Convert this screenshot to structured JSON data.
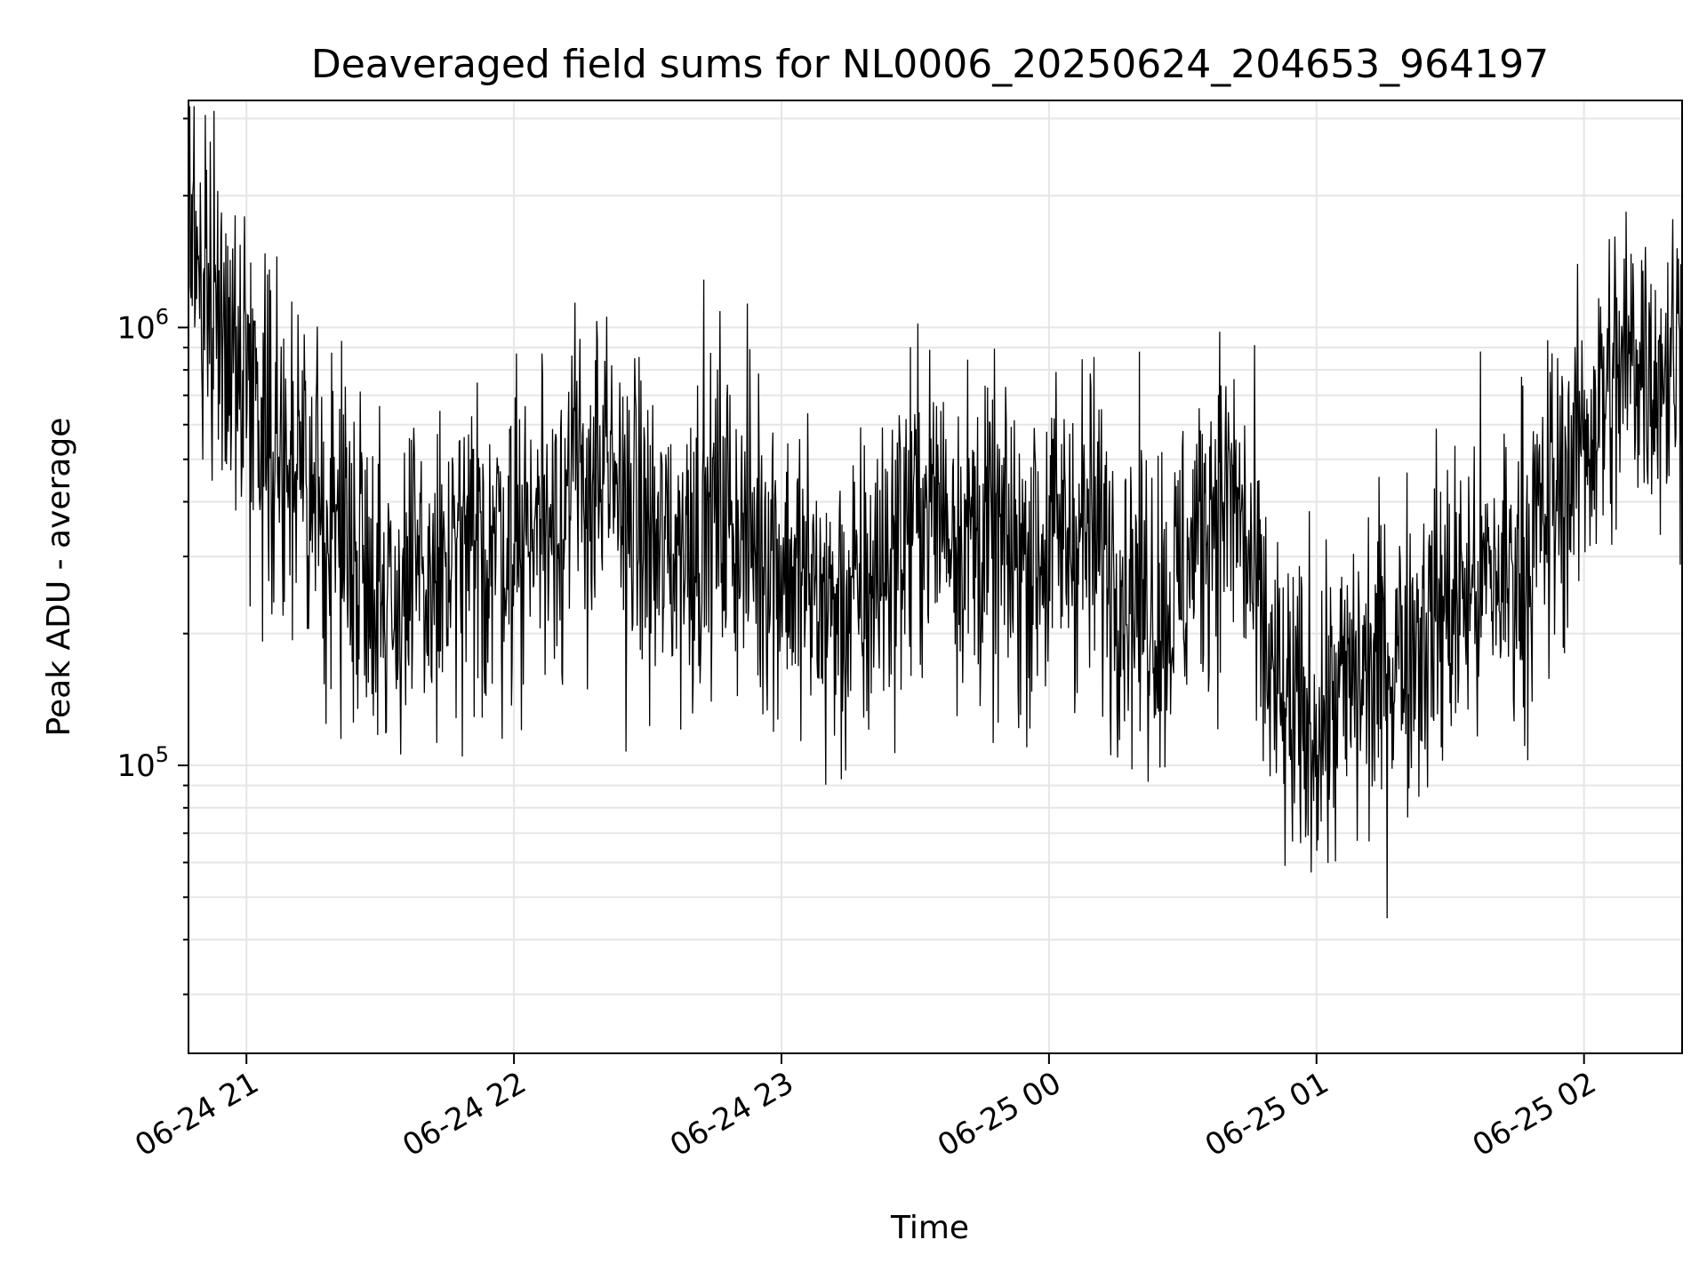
{
  "chart_data": {
    "type": "line",
    "title": "Deaveraged field sums for NL0006_20250624_204653_964197",
    "xlabel": "Time",
    "ylabel": "Peak ADU - average",
    "yscale": "log",
    "grid": true,
    "line_color": "#000000",
    "grid_color": "#e6e6e6",
    "xlim": [
      "2025-06-24 20:47",
      "2025-06-25 02:22"
    ],
    "ylim": [
      22000,
      3300000
    ],
    "xticks": [
      {
        "t": "2025-06-24 21:00",
        "label": "06-24 21"
      },
      {
        "t": "2025-06-24 22:00",
        "label": "06-24 22"
      },
      {
        "t": "2025-06-24 23:00",
        "label": "06-24 23"
      },
      {
        "t": "2025-06-25 00:00",
        "label": "06-25 00"
      },
      {
        "t": "2025-06-25 01:00",
        "label": "06-25 01"
      },
      {
        "t": "2025-06-25 02:00",
        "label": "06-25 02"
      }
    ],
    "yticks": [
      {
        "value": 100000,
        "base": "10",
        "exp": "5"
      },
      {
        "value": 1000000,
        "base": "10",
        "exp": "6"
      }
    ],
    "series": [
      {
        "points": [
          [
            "2025-06-24 20:47",
            1500000
          ],
          [
            "2025-06-24 20:52",
            1300000
          ],
          [
            "2025-06-24 20:57",
            900000
          ],
          [
            "2025-06-24 21:02",
            700000
          ],
          [
            "2025-06-24 21:07",
            550000
          ],
          [
            "2025-06-24 21:12",
            420000
          ],
          [
            "2025-06-24 21:17",
            380000
          ],
          [
            "2025-06-24 21:22",
            340000
          ],
          [
            "2025-06-24 21:27",
            300000
          ],
          [
            "2025-06-24 21:32",
            240000
          ],
          [
            "2025-06-24 21:37",
            250000
          ],
          [
            "2025-06-24 21:42",
            260000
          ],
          [
            "2025-06-24 21:47",
            280000
          ],
          [
            "2025-06-24 21:52",
            300000
          ],
          [
            "2025-06-24 21:57",
            330000
          ],
          [
            "2025-06-24 22:02",
            340000
          ],
          [
            "2025-06-24 22:07",
            380000
          ],
          [
            "2025-06-24 22:12",
            420000
          ],
          [
            "2025-06-24 22:17",
            450000
          ],
          [
            "2025-06-24 22:22",
            420000
          ],
          [
            "2025-06-24 22:27",
            380000
          ],
          [
            "2025-06-24 22:32",
            300000
          ],
          [
            "2025-06-24 22:37",
            320000
          ],
          [
            "2025-06-24 22:42",
            360000
          ],
          [
            "2025-06-24 22:47",
            380000
          ],
          [
            "2025-06-24 22:52",
            340000
          ],
          [
            "2025-06-24 22:57",
            320000
          ],
          [
            "2025-06-24 23:02",
            280000
          ],
          [
            "2025-06-24 23:07",
            250000
          ],
          [
            "2025-06-24 23:12",
            220000
          ],
          [
            "2025-06-24 23:17",
            230000
          ],
          [
            "2025-06-24 23:22",
            280000
          ],
          [
            "2025-06-24 23:27",
            340000
          ],
          [
            "2025-06-24 23:32",
            400000
          ],
          [
            "2025-06-24 23:37",
            380000
          ],
          [
            "2025-06-24 23:42",
            340000
          ],
          [
            "2025-06-24 23:47",
            320000
          ],
          [
            "2025-06-24 23:52",
            300000
          ],
          [
            "2025-06-24 23:57",
            310000
          ],
          [
            "2025-06-25 00:02",
            330000
          ],
          [
            "2025-06-25 00:07",
            350000
          ],
          [
            "2025-06-25 00:12",
            320000
          ],
          [
            "2025-06-25 00:17",
            270000
          ],
          [
            "2025-06-25 00:22",
            240000
          ],
          [
            "2025-06-25 00:27",
            230000
          ],
          [
            "2025-06-25 00:32",
            300000
          ],
          [
            "2025-06-25 00:37",
            420000
          ],
          [
            "2025-06-25 00:42",
            400000
          ],
          [
            "2025-06-25 00:47",
            220000
          ],
          [
            "2025-06-25 00:52",
            130000
          ],
          [
            "2025-06-25 00:57",
            120000
          ],
          [
            "2025-06-25 01:02",
            130000
          ],
          [
            "2025-06-25 01:07",
            150000
          ],
          [
            "2025-06-25 01:12",
            160000
          ],
          [
            "2025-06-25 01:17",
            180000
          ],
          [
            "2025-06-25 01:22",
            200000
          ],
          [
            "2025-06-25 01:27",
            220000
          ],
          [
            "2025-06-25 01:32",
            240000
          ],
          [
            "2025-06-25 01:37",
            260000
          ],
          [
            "2025-06-25 01:42",
            270000
          ],
          [
            "2025-06-25 01:47",
            300000
          ],
          [
            "2025-06-25 01:52",
            380000
          ],
          [
            "2025-06-25 01:57",
            480000
          ],
          [
            "2025-06-25 02:02",
            620000
          ],
          [
            "2025-06-25 02:07",
            750000
          ],
          [
            "2025-06-25 02:12",
            900000
          ],
          [
            "2025-06-25 02:17",
            800000
          ],
          [
            "2025-06-25 02:22",
            900000
          ]
        ]
      }
    ]
  }
}
